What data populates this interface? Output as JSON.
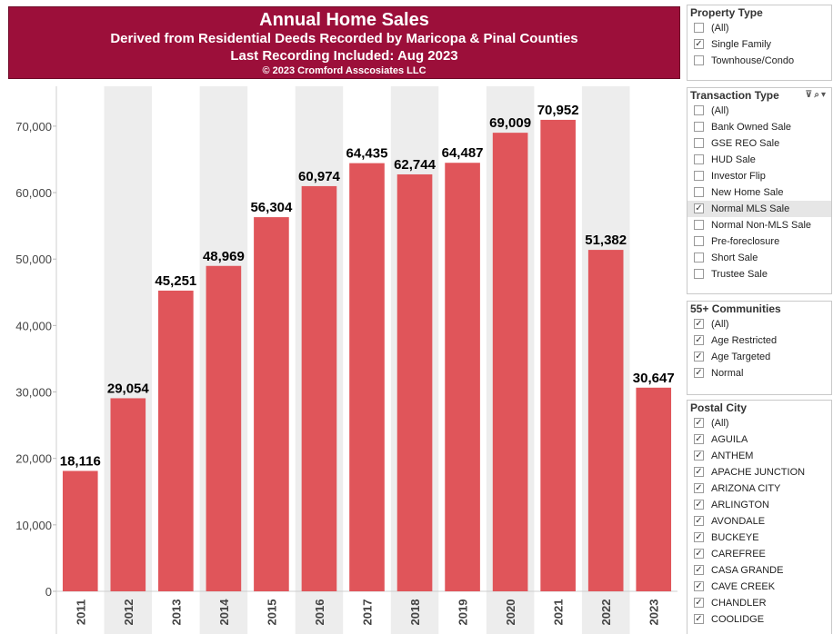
{
  "header": {
    "title": "Annual Home Sales",
    "subtitle": "Derived from Residential Deeds Recorded by Maricopa & Pinal Counties",
    "recording": "Last Recording Included: Aug 2023",
    "copyright": "© 2023 Cromford Asscosiates LLC"
  },
  "chart_data": {
    "type": "bar",
    "title": "Annual Home Sales",
    "xlabel": "",
    "ylabel": "",
    "categories": [
      "2011",
      "2012",
      "2013",
      "2014",
      "2015",
      "2016",
      "2017",
      "2018",
      "2019",
      "2020",
      "2021",
      "2022",
      "2023"
    ],
    "values": [
      18116,
      29054,
      45251,
      48969,
      56304,
      60974,
      64435,
      62744,
      64487,
      69009,
      70952,
      51382,
      30647
    ],
    "value_labels": [
      "18,116",
      "29,054",
      "45,251",
      "48,969",
      "56,304",
      "60,974",
      "64,435",
      "62,744",
      "64,487",
      "69,009",
      "70,952",
      "51,382",
      "30,647"
    ],
    "ylim": [
      0,
      76000
    ],
    "y_ticks": [
      0,
      10000,
      20000,
      30000,
      40000,
      50000,
      60000,
      70000
    ],
    "y_tick_labels": [
      "0",
      "10,000",
      "20,000",
      "30,000",
      "40,000",
      "50,000",
      "60,000",
      "70,000"
    ],
    "bar_color": "#e0555a",
    "band_color": "#ededed",
    "grid": false
  },
  "filters": {
    "property_type": {
      "title": "Property Type",
      "options": [
        {
          "label": "(All)",
          "checked": false
        },
        {
          "label": "Single Family",
          "checked": true
        },
        {
          "label": "Townhouse/Condo",
          "checked": false
        }
      ]
    },
    "transaction_type": {
      "title": "Transaction Type",
      "options": [
        {
          "label": "(All)",
          "checked": false
        },
        {
          "label": "Bank Owned Sale",
          "checked": false
        },
        {
          "label": "GSE REO Sale",
          "checked": false
        },
        {
          "label": "HUD Sale",
          "checked": false
        },
        {
          "label": "Investor Flip",
          "checked": false
        },
        {
          "label": "New Home Sale",
          "checked": false
        },
        {
          "label": "Normal MLS Sale",
          "checked": true
        },
        {
          "label": "Normal Non-MLS Sale",
          "checked": false
        },
        {
          "label": "Pre-foreclosure",
          "checked": false
        },
        {
          "label": "Short Sale",
          "checked": false
        },
        {
          "label": "Trustee Sale",
          "checked": false
        }
      ]
    },
    "communities_55": {
      "title": "55+ Communities",
      "options": [
        {
          "label": "(All)",
          "checked": true
        },
        {
          "label": "Age Restricted",
          "checked": true
        },
        {
          "label": "Age Targeted",
          "checked": true
        },
        {
          "label": "Normal",
          "checked": true
        }
      ]
    },
    "postal_city": {
      "title": "Postal City",
      "options": [
        {
          "label": "(All)",
          "checked": true
        },
        {
          "label": "AGUILA",
          "checked": true
        },
        {
          "label": "ANTHEM",
          "checked": true
        },
        {
          "label": "APACHE JUNCTION",
          "checked": true
        },
        {
          "label": "ARIZONA CITY",
          "checked": true
        },
        {
          "label": "ARLINGTON",
          "checked": true
        },
        {
          "label": "AVONDALE",
          "checked": true
        },
        {
          "label": "BUCKEYE",
          "checked": true
        },
        {
          "label": "CAREFREE",
          "checked": true
        },
        {
          "label": "CASA GRANDE",
          "checked": true
        },
        {
          "label": "CAVE CREEK",
          "checked": true
        },
        {
          "label": "CHANDLER",
          "checked": true
        },
        {
          "label": "COOLIDGE",
          "checked": true
        }
      ]
    }
  }
}
